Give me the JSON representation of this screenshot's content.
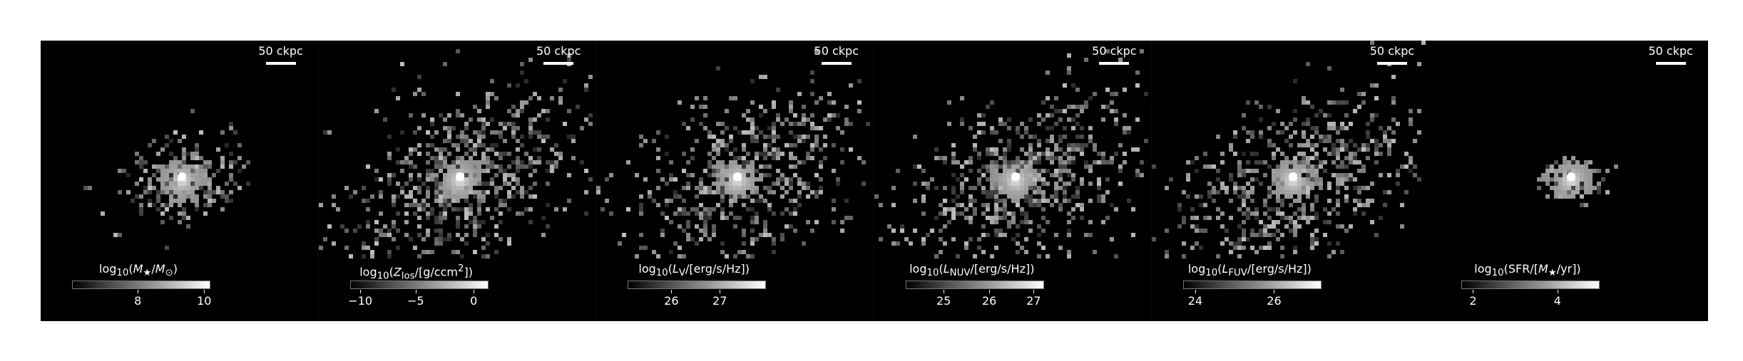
{
  "scalebar_label": "50 ckpc",
  "colors": {
    "background": "#000000",
    "pixels": "#ffffff",
    "page": "#ffffff"
  },
  "panels": [
    {
      "cbar_title_html": "log<sub>10</sub>(<i>M</i><sub>★</sub>/<i>M</i><sub>⊙</sub>)",
      "ticks": [
        {
          "label": "8",
          "frac": 0.47
        },
        {
          "label": "10",
          "frac": 0.95
        }
      ],
      "scatter_spread": 0.45,
      "core_fraction": 0.55,
      "galaxy_center": [
        0.5,
        0.5
      ]
    },
    {
      "cbar_title_html": "log<sub>10</sub>(<i>Z</i><sub>los</sub>/[g/ccm<sup>2</sup>])",
      "ticks": [
        {
          "label": "−10",
          "frac": 0.07
        },
        {
          "label": "−5",
          "frac": 0.47
        },
        {
          "label": "0",
          "frac": 0.89
        }
      ],
      "scatter_spread": 1.0,
      "core_fraction": 0.25,
      "galaxy_center": [
        0.5,
        0.5
      ]
    },
    {
      "cbar_title_html": "log<sub>10</sub>(<i>L</i><sub>V</sub>/[erg/s/Hz])",
      "ticks": [
        {
          "label": "26",
          "frac": 0.31
        },
        {
          "label": "27",
          "frac": 0.66
        }
      ],
      "scatter_spread": 0.9,
      "core_fraction": 0.3,
      "galaxy_center": [
        0.5,
        0.5
      ]
    },
    {
      "cbar_title_html": "log<sub>10</sub>(<i>L</i><sub>NUV</sub>/[erg/s/Hz])",
      "ticks": [
        {
          "label": "25",
          "frac": 0.27
        },
        {
          "label": "26",
          "frac": 0.6
        },
        {
          "label": "27",
          "frac": 0.92
        }
      ],
      "scatter_spread": 0.95,
      "core_fraction": 0.25,
      "galaxy_center": [
        0.5,
        0.5
      ]
    },
    {
      "cbar_title_html": "log<sub>10</sub>(<i>L</i><sub>FUV</sub>/[erg/s/Hz])",
      "ticks": [
        {
          "label": "24",
          "frac": 0.08
        },
        {
          "label": "26",
          "frac": 0.65
        }
      ],
      "scatter_spread": 0.95,
      "core_fraction": 0.25,
      "galaxy_center": [
        0.5,
        0.5
      ]
    },
    {
      "cbar_title_html": "log<sub>10</sub>(SFR/[<i>M</i><sub>★</sub>/yr])",
      "ticks": [
        {
          "label": "2",
          "frac": 0.08
        },
        {
          "label": "4",
          "frac": 0.69
        }
      ],
      "scatter_spread": 0.15,
      "core_fraction": 0.8,
      "galaxy_center": [
        0.5,
        0.5
      ]
    }
  ]
}
